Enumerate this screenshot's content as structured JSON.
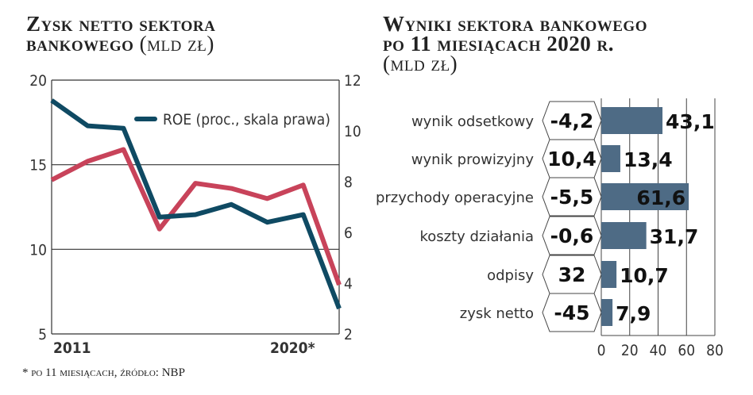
{
  "left_title": {
    "line1": "Zysk netto sektora",
    "line2": "bankowego",
    "unit": "(mld zł)"
  },
  "right_title": {
    "line1": "Wyniki sektora bankowego",
    "line2": "po 11 miesiącach 2020 r.",
    "unit": "(mld zł)"
  },
  "footnote": "* po 11 miesiącach, źródło: NBP",
  "colors": {
    "profit": "#c8435a",
    "roe": "#0f4a63",
    "bar": "#4e6b85"
  },
  "chart_data": [
    {
      "type": "line",
      "title": "Zysk netto sektora bankowego (mld zł)",
      "x_labels": [
        "2011",
        "2020*"
      ],
      "yleft": {
        "ticks": [
          5,
          10,
          15,
          20
        ],
        "range": [
          5,
          20
        ]
      },
      "yright": {
        "ticks": [
          2,
          4,
          6,
          8,
          10,
          12
        ],
        "range": [
          2,
          12
        ]
      },
      "legend": "ROE (proc., skala prawa)",
      "legend_position": "top-right",
      "grid": true,
      "series": [
        {
          "name": "Zysk netto",
          "axis": "left",
          "values": [
            14.1,
            15.2,
            15.9,
            11.2,
            13.9,
            13.6,
            13.0,
            13.8,
            7.9
          ]
        },
        {
          "name": "ROE (proc., skala prawa)",
          "axis": "right",
          "values": [
            11.2,
            10.2,
            10.1,
            6.6,
            6.7,
            7.1,
            6.4,
            6.7,
            3.0
          ]
        }
      ]
    },
    {
      "type": "bar",
      "title": "Wyniki sektora bankowego po 11 miesiącach 2020 r. (mld zł)",
      "categories": [
        "wynik odsetkowy",
        "wynik prowizyjny",
        "przychody operacyjne",
        "koszty działania",
        "odpisy",
        "zysk netto"
      ],
      "values": [
        43.1,
        13.4,
        61.6,
        31.7,
        10.7,
        7.9
      ],
      "value_labels": [
        "43,1",
        "13,4",
        "61,6",
        "31,7",
        "10,7",
        "7,9"
      ],
      "change_labels": [
        "-4,2",
        "10,4",
        "-5,5",
        "-0,6",
        "32",
        "-45"
      ],
      "xticks": [
        0,
        20,
        40,
        60,
        80
      ],
      "xlim": [
        0,
        80
      ]
    }
  ]
}
